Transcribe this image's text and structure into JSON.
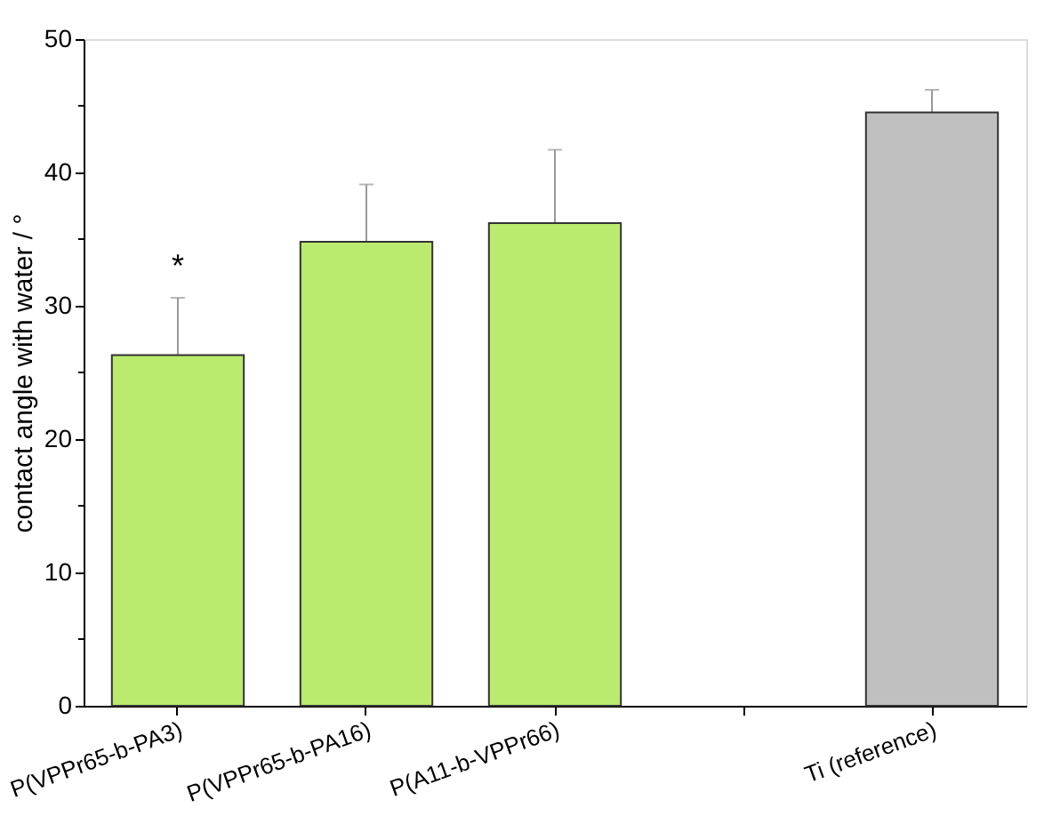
{
  "chart_data": {
    "type": "bar",
    "ylabel": "contact angle with water / °",
    "categories": [
      "P(VPPr65-b-PA3)",
      "P(VPPr65-b-PA16)",
      "P(A11-b-VPPr66)",
      null,
      "Ti (reference)"
    ],
    "values": [
      26.3,
      34.8,
      36.2,
      null,
      44.5
    ],
    "colors": [
      "#bbeb6e",
      "#bbeb6e",
      "#bbeb6e",
      "#bbeb6e",
      "#c0c0c0"
    ],
    "errors": [
      4.3,
      4.3,
      5.5,
      null,
      1.7
    ],
    "ylim": [
      0,
      50
    ],
    "yticks": [
      0,
      {
        "value": 5,
        "label": null
      },
      10,
      {
        "value": 15,
        "label": null
      },
      20,
      {
        "value": 25,
        "label": null
      },
      30,
      {
        "value": 35,
        "label": null
      },
      40,
      {
        "value": 45,
        "label": null
      },
      50
    ],
    "annotations": [
      "*"
    ],
    "grid": false
  }
}
